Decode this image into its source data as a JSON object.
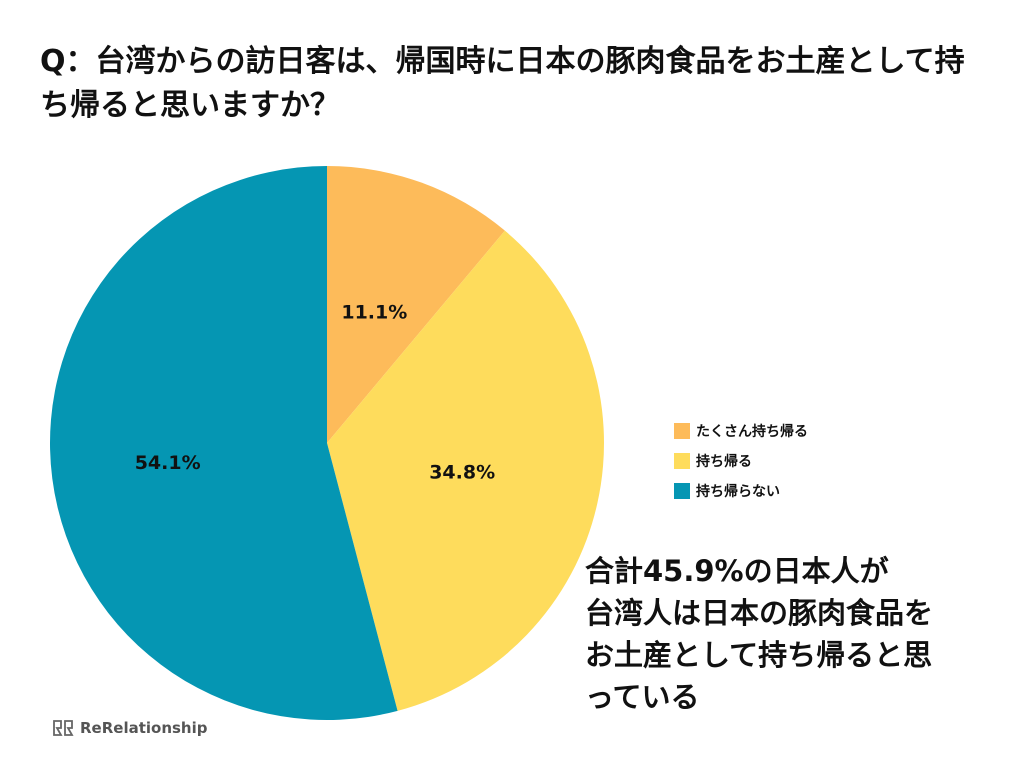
{
  "question": "Q：台湾からの訪日客は、帰国時に日本の豚肉食品をお土産として持ち帰ると思いますか？",
  "chart_data": {
    "type": "pie",
    "title": "Q：台湾からの訪日客は、帰国時に日本の豚肉食品をお土産として持ち帰ると思いますか？",
    "slices": [
      {
        "label": "たくさん持ち帰る",
        "value": 11.1,
        "display": "11.1%",
        "color": "#FDBB5A"
      },
      {
        "label": "持ち帰る",
        "value": 34.8,
        "display": "34.8%",
        "color": "#FEDC5C"
      },
      {
        "label": "持ち帰らない",
        "value": 54.1,
        "display": "54.1%",
        "color": "#0596B3"
      }
    ],
    "start_angle_deg": 0,
    "direction": "clockwise",
    "legend_position": "right"
  },
  "legend": {
    "items": [
      {
        "label": "たくさん持ち帰る",
        "color": "#FDBB5A"
      },
      {
        "label": "持ち帰る",
        "color": "#FEDC5C"
      },
      {
        "label": "持ち帰らない",
        "color": "#0596B3"
      }
    ]
  },
  "summary": {
    "lines": [
      "合計45.9%の日本人が",
      "台湾人は日本の豚肉食品を",
      "お土産として持ち帰ると思",
      "っている"
    ]
  },
  "brand": {
    "name": "ReRelationship"
  }
}
